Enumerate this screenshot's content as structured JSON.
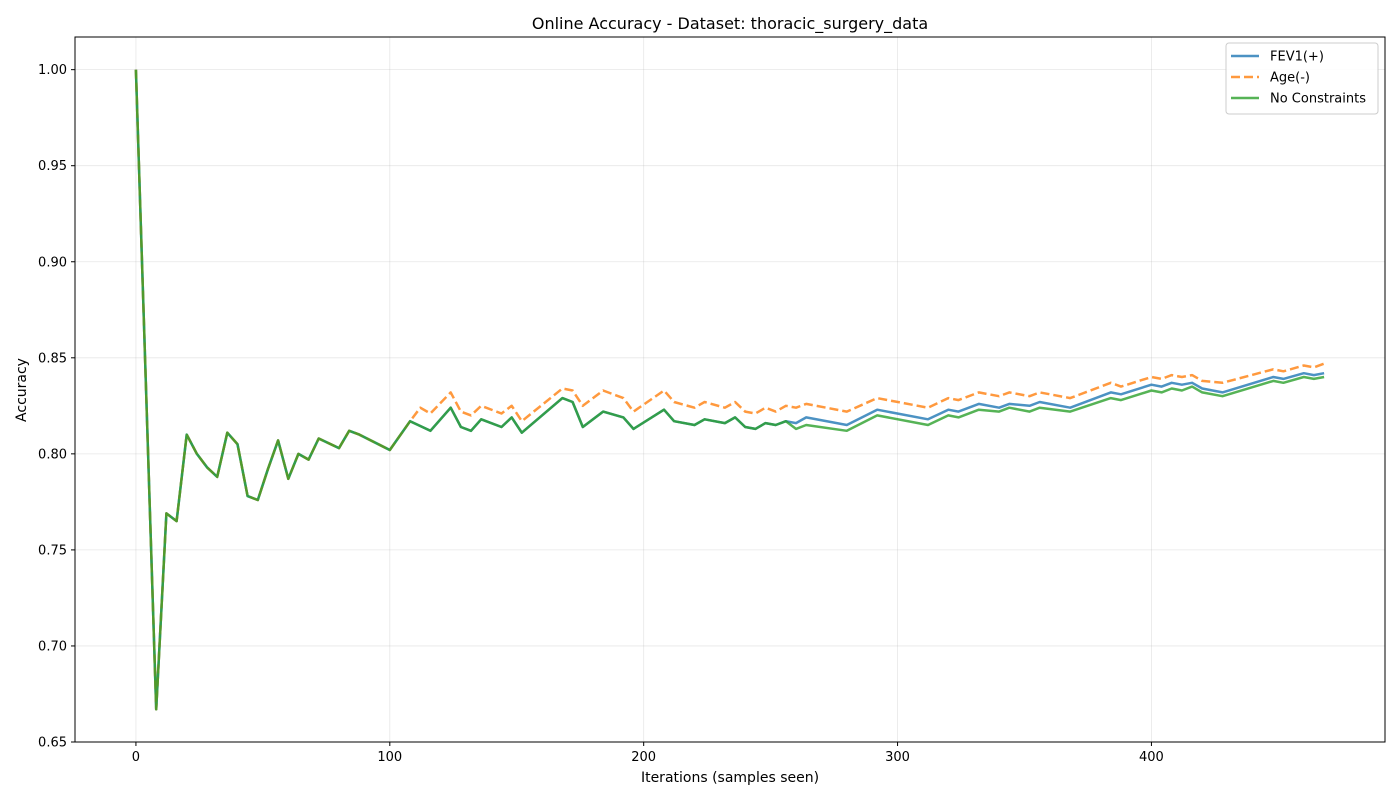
{
  "chart_data": {
    "type": "line",
    "title": "Online Accuracy - Dataset: thoracic_surgery_data",
    "xlabel": "Iterations (samples seen)",
    "ylabel": "Accuracy",
    "xlim": [
      -24,
      492
    ],
    "ylim": [
      0.65,
      1.017
    ],
    "xticks": [
      0,
      100,
      200,
      300,
      400
    ],
    "xtick_labels": [
      "0",
      "100",
      "200",
      "300",
      "400"
    ],
    "yticks": [
      0.65,
      0.7,
      0.75,
      0.8,
      0.85,
      0.9,
      0.95,
      1.0
    ],
    "ytick_labels": [
      "0.65",
      "0.70",
      "0.75",
      "0.80",
      "0.85",
      "0.90",
      "0.95",
      "1.00"
    ],
    "grid": true,
    "legend_position": "top-right",
    "series": [
      {
        "name": "FEV1(+)",
        "color": "#1f77b4",
        "dash": "solid",
        "x": [
          0,
          8,
          12,
          16,
          20,
          24,
          28,
          32,
          36,
          40,
          44,
          48,
          52,
          56,
          60,
          64,
          68,
          72,
          80,
          84,
          88,
          100,
          108,
          116,
          124,
          128,
          132,
          136,
          144,
          148,
          152,
          168,
          172,
          176,
          184,
          192,
          196,
          208,
          212,
          220,
          224,
          232,
          236,
          240,
          244,
          248,
          252,
          256,
          260,
          264,
          280,
          292,
          312,
          320,
          324,
          332,
          340,
          344,
          352,
          356,
          368,
          384,
          388,
          400,
          404,
          408,
          412,
          416,
          420,
          428,
          448,
          452,
          460,
          464,
          468
        ],
        "y": [
          1.0,
          0.667,
          0.769,
          0.765,
          0.81,
          0.8,
          0.793,
          0.788,
          0.811,
          0.805,
          0.778,
          0.776,
          0.792,
          0.807,
          0.787,
          0.8,
          0.797,
          0.808,
          0.803,
          0.812,
          0.81,
          0.802,
          0.817,
          0.812,
          0.824,
          0.814,
          0.812,
          0.818,
          0.814,
          0.819,
          0.811,
          0.829,
          0.827,
          0.814,
          0.822,
          0.819,
          0.813,
          0.823,
          0.817,
          0.815,
          0.818,
          0.816,
          0.819,
          0.814,
          0.813,
          0.816,
          0.815,
          0.817,
          0.816,
          0.819,
          0.815,
          0.823,
          0.818,
          0.823,
          0.822,
          0.826,
          0.824,
          0.826,
          0.825,
          0.827,
          0.824,
          0.832,
          0.831,
          0.836,
          0.835,
          0.837,
          0.836,
          0.837,
          0.834,
          0.832,
          0.84,
          0.839,
          0.842,
          0.841,
          0.842
        ]
      },
      {
        "name": "Age(-)",
        "color": "#ff7f0e",
        "dash": "dashed",
        "x": [
          0,
          8,
          12,
          16,
          20,
          24,
          28,
          32,
          36,
          40,
          44,
          48,
          52,
          56,
          60,
          64,
          68,
          72,
          80,
          84,
          88,
          100,
          108,
          112,
          116,
          124,
          128,
          132,
          136,
          144,
          148,
          152,
          168,
          172,
          176,
          184,
          192,
          196,
          208,
          212,
          220,
          224,
          232,
          236,
          240,
          244,
          248,
          252,
          256,
          260,
          264,
          280,
          292,
          312,
          320,
          324,
          332,
          340,
          344,
          352,
          356,
          368,
          384,
          388,
          400,
          404,
          408,
          412,
          416,
          420,
          428,
          448,
          452,
          460,
          464,
          468
        ],
        "y": [
          1.0,
          0.667,
          0.769,
          0.765,
          0.81,
          0.8,
          0.793,
          0.788,
          0.811,
          0.805,
          0.778,
          0.776,
          0.792,
          0.807,
          0.787,
          0.8,
          0.797,
          0.808,
          0.803,
          0.812,
          0.81,
          0.802,
          0.817,
          0.824,
          0.821,
          0.832,
          0.822,
          0.82,
          0.825,
          0.821,
          0.825,
          0.817,
          0.834,
          0.833,
          0.825,
          0.833,
          0.829,
          0.822,
          0.833,
          0.827,
          0.824,
          0.827,
          0.824,
          0.827,
          0.822,
          0.821,
          0.824,
          0.822,
          0.825,
          0.824,
          0.826,
          0.822,
          0.829,
          0.824,
          0.829,
          0.828,
          0.832,
          0.83,
          0.832,
          0.83,
          0.832,
          0.829,
          0.837,
          0.835,
          0.84,
          0.839,
          0.841,
          0.84,
          0.841,
          0.838,
          0.837,
          0.844,
          0.843,
          0.846,
          0.845,
          0.847
        ]
      },
      {
        "name": "No Constraints",
        "color": "#2ca02c",
        "dash": "solid",
        "x": [
          0,
          8,
          12,
          16,
          20,
          24,
          28,
          32,
          36,
          40,
          44,
          48,
          52,
          56,
          60,
          64,
          68,
          72,
          80,
          84,
          88,
          100,
          108,
          116,
          124,
          128,
          132,
          136,
          144,
          148,
          152,
          168,
          172,
          176,
          184,
          192,
          196,
          208,
          212,
          220,
          224,
          232,
          236,
          240,
          244,
          248,
          252,
          256,
          260,
          264,
          280,
          292,
          312,
          320,
          324,
          332,
          340,
          344,
          352,
          356,
          368,
          384,
          388,
          400,
          404,
          408,
          412,
          416,
          420,
          428,
          448,
          452,
          460,
          464,
          468
        ],
        "y": [
          1.0,
          0.667,
          0.769,
          0.765,
          0.81,
          0.8,
          0.793,
          0.788,
          0.811,
          0.805,
          0.778,
          0.776,
          0.792,
          0.807,
          0.787,
          0.8,
          0.797,
          0.808,
          0.803,
          0.812,
          0.81,
          0.802,
          0.817,
          0.812,
          0.824,
          0.814,
          0.812,
          0.818,
          0.814,
          0.819,
          0.811,
          0.829,
          0.827,
          0.814,
          0.822,
          0.819,
          0.813,
          0.823,
          0.817,
          0.815,
          0.818,
          0.816,
          0.819,
          0.814,
          0.813,
          0.816,
          0.815,
          0.817,
          0.813,
          0.815,
          0.812,
          0.82,
          0.815,
          0.82,
          0.819,
          0.823,
          0.822,
          0.824,
          0.822,
          0.824,
          0.822,
          0.829,
          0.828,
          0.833,
          0.832,
          0.834,
          0.833,
          0.835,
          0.832,
          0.83,
          0.838,
          0.837,
          0.84,
          0.839,
          0.84
        ]
      }
    ]
  }
}
